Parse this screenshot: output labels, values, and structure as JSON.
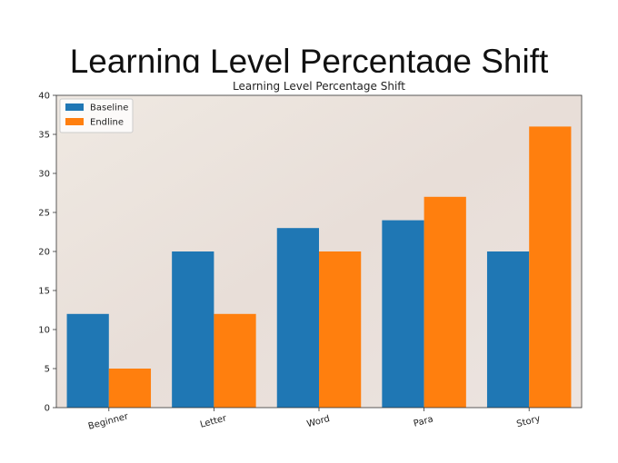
{
  "slide_title": "Learning Level Percentage Shift",
  "chart_data": {
    "type": "bar",
    "title": "Learning Level Percentage Shift",
    "categories": [
      "Beginner",
      "Letter",
      "Word",
      "Para",
      "Story"
    ],
    "series": [
      {
        "name": "Baseline",
        "color": "#1f77b4",
        "values": [
          12,
          20,
          23,
          24,
          20
        ]
      },
      {
        "name": "Endline",
        "color": "#ff7f0e",
        "values": [
          5,
          12,
          20,
          27,
          36
        ]
      }
    ],
    "ylim": [
      0,
      40
    ],
    "yticks": [
      0,
      5,
      10,
      15,
      20,
      25,
      30,
      35,
      40
    ],
    "legend": "upper left"
  }
}
